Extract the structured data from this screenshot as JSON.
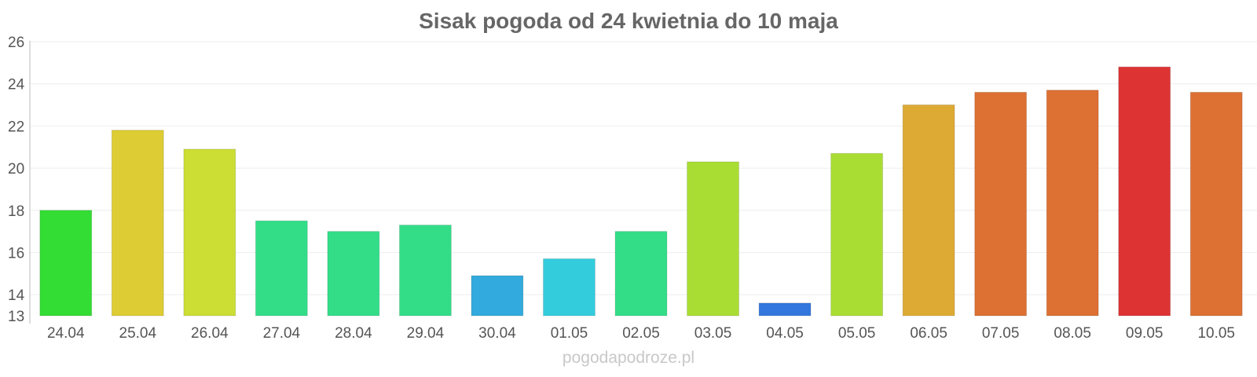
{
  "chart_data": {
    "type": "bar",
    "title": "Sisak pogoda od 24 kwietnia do 10 maja",
    "xlabel": "",
    "ylabel": "",
    "ylim": [
      13,
      26
    ],
    "yticks": [
      13,
      14,
      16,
      18,
      20,
      22,
      24,
      26
    ],
    "grid": true,
    "categories": [
      "24.04",
      "25.04",
      "26.04",
      "27.04",
      "28.04",
      "29.04",
      "30.04",
      "01.05",
      "02.05",
      "03.05",
      "04.05",
      "05.05",
      "06.05",
      "07.05",
      "08.05",
      "09.05",
      "10.05"
    ],
    "values": [
      18.0,
      21.8,
      20.9,
      17.5,
      17.0,
      17.3,
      14.9,
      15.7,
      17.0,
      20.3,
      13.6,
      20.7,
      23.0,
      23.6,
      23.7,
      24.8,
      23.6
    ],
    "colors": [
      "#33dd33",
      "#ddcc33",
      "#ccdd33",
      "#33dd88",
      "#33dd88",
      "#33dd88",
      "#33aadd",
      "#33ccdd",
      "#33dd88",
      "#aadd33",
      "#3377dd",
      "#aadd33",
      "#ddaa33",
      "#dd7033",
      "#dd7033",
      "#dd3333",
      "#dd7033"
    ]
  },
  "watermark": "pogodapodroze.pl"
}
